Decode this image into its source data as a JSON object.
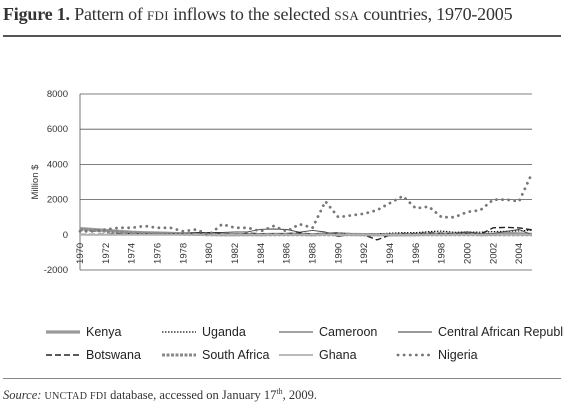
{
  "figure": {
    "label": "Figure 1.",
    "title_part1": "Pattern of",
    "title_sc1": "FDI",
    "title_part2": "inflows to the selected",
    "title_sc2": "SSA",
    "title_part3": "countries, 1970-2005"
  },
  "source": {
    "label": "Source:",
    "sc1": "UNCTAD FDI",
    "text": "database, accessed on January 17",
    "sup": "th",
    "tail": ", 2009."
  },
  "chart_data": {
    "type": "line",
    "ylabel": "Million $",
    "xlabel": "",
    "ylim": [
      -2000,
      8000
    ],
    "yticks": [
      8000,
      6000,
      4000,
      2000,
      0,
      -2000
    ],
    "xticks": [
      1970,
      1972,
      1974,
      1976,
      1978,
      1980,
      1982,
      1984,
      1986,
      1988,
      1990,
      1992,
      1994,
      1996,
      1998,
      2000,
      2002,
      2004
    ],
    "x": [
      1970,
      1971,
      1972,
      1973,
      1974,
      1975,
      1976,
      1977,
      1978,
      1979,
      1980,
      1981,
      1982,
      1983,
      1984,
      1985,
      1986,
      1987,
      1988,
      1989,
      1990,
      1991,
      1992,
      1993,
      1994,
      1995,
      1996,
      1997,
      1998,
      1999,
      2000,
      2001,
      2002,
      2003,
      2004,
      2005
    ],
    "grid": true,
    "legend_position": "bottom",
    "series": [
      {
        "name": "Kenya",
        "color": "#9a9a9a",
        "style": "thick",
        "values": [
          350,
          300,
          250,
          200,
          150,
          120,
          100,
          80,
          60,
          40,
          20,
          10,
          10,
          20,
          10,
          30,
          30,
          40,
          0,
          60,
          60,
          20,
          10,
          10,
          0,
          0,
          10,
          40,
          40,
          50,
          110,
          10,
          30,
          80,
          50,
          20
        ]
      },
      {
        "name": "Uganda",
        "color": "#111111",
        "style": "dotted",
        "values": [
          0,
          0,
          0,
          0,
          0,
          0,
          0,
          0,
          0,
          0,
          0,
          0,
          0,
          0,
          0,
          0,
          0,
          0,
          0,
          0,
          0,
          0,
          0,
          50,
          90,
          120,
          120,
          180,
          210,
          140,
          160,
          150,
          180,
          200,
          220,
          260
        ]
      },
      {
        "name": "Cameroon",
        "color": "#444444",
        "style": "thin",
        "values": [
          30,
          20,
          30,
          40,
          40,
          60,
          40,
          70,
          90,
          130,
          130,
          130,
          160,
          170,
          310,
          330,
          300,
          150,
          250,
          160,
          -110,
          20,
          20,
          0,
          0,
          0,
          0,
          0,
          50,
          40,
          160,
          70,
          80,
          200,
          300,
          0
        ]
      },
      {
        "name": "Central African Republic",
        "color": "#333333",
        "style": "thin",
        "values": [
          0,
          0,
          0,
          0,
          0,
          0,
          0,
          0,
          0,
          0,
          0,
          0,
          0,
          0,
          0,
          0,
          0,
          0,
          0,
          0,
          0,
          0,
          0,
          0,
          0,
          0,
          0,
          0,
          0,
          0,
          0,
          0,
          0,
          0,
          0,
          0
        ]
      },
      {
        "name": "Botswana",
        "color": "#222222",
        "style": "dashed",
        "values": [
          10,
          20,
          30,
          50,
          70,
          60,
          20,
          40,
          40,
          100,
          110,
          60,
          20,
          90,
          60,
          50,
          70,
          110,
          40,
          40,
          100,
          -10,
          -1,
          -290,
          -10,
          70,
          70,
          100,
          90,
          40,
          60,
          30,
          400,
          420,
          390,
          280
        ]
      },
      {
        "name": "South Africa",
        "color": "#888888",
        "style": "thickdashed",
        "values": [
          300,
          250,
          200,
          150,
          100,
          80,
          60,
          50,
          30,
          20,
          0,
          0,
          0,
          0,
          0,
          0,
          0,
          0,
          0,
          0,
          0,
          0,
          0,
          0,
          0,
          0,
          0,
          0,
          0,
          0,
          0,
          0,
          0,
          0,
          0,
          0
        ]
      },
      {
        "name": "Ghana",
        "color": "#b0b0b0",
        "style": "medium",
        "values": [
          0,
          0,
          0,
          0,
          0,
          0,
          0,
          0,
          0,
          0,
          0,
          0,
          0,
          0,
          0,
          0,
          0,
          0,
          0,
          0,
          0,
          0,
          0,
          0,
          0,
          0,
          0,
          0,
          0,
          0,
          0,
          0,
          0,
          0,
          0,
          0
        ]
      },
      {
        "name": "Nigeria",
        "color": "#777777",
        "style": "bigdots",
        "values": [
          200,
          200,
          300,
          400,
          400,
          500,
          400,
          400,
          200,
          300,
          0,
          600,
          400,
          400,
          200,
          500,
          200,
          600,
          400,
          1900,
          1000,
          1100,
          1200,
          1400,
          1800,
          2200,
          1500,
          1600,
          1000,
          1000,
          1300,
          1400,
          2000,
          2000,
          1900,
          3500
        ]
      }
    ]
  }
}
